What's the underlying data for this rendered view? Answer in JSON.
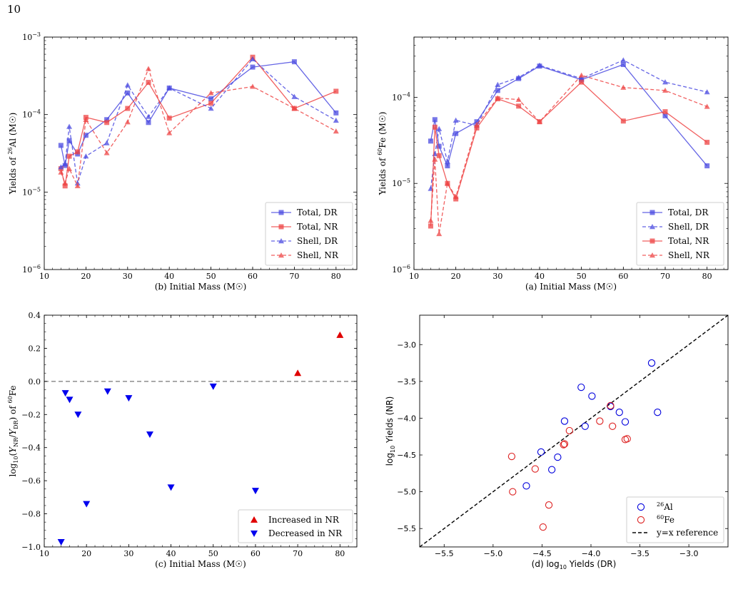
{
  "page": {
    "number": "10"
  },
  "chart_data": [
    {
      "id": "al26",
      "type": "line",
      "yscale": "log",
      "xlim": [
        10,
        85
      ],
      "ylim": [
        1e-06,
        0.001
      ],
      "xticks": [
        10,
        20,
        30,
        40,
        50,
        60,
        70,
        80
      ],
      "ytick_labels": [
        "10^-6",
        "10^-5",
        "10^-4",
        "10^-3"
      ],
      "xlabel": "(b) Initial Mass (M☉)",
      "ylabel": "Yields of 26Al (M☉)",
      "legend": "lower-right",
      "x": [
        14,
        15,
        16,
        18,
        20,
        25,
        30,
        35,
        40,
        50,
        60,
        70,
        80
      ],
      "series": [
        {
          "name": "Total, DR",
          "color": "#4a4ae0",
          "dash": false,
          "marker": "square",
          "values": [
            4e-05,
            2.2e-05,
            4.6e-05,
            3.1e-05,
            5.4e-05,
            8.6e-05,
            0.00019,
            7.9e-05,
            0.00022,
            0.00016,
            0.00041,
            0.00048,
            0.000105
          ]
        },
        {
          "name": "Total, NR",
          "color": "#ee4444",
          "dash": false,
          "marker": "square",
          "values": [
            2e-05,
            1.2e-05,
            2.9e-05,
            3.3e-05,
            9.2e-05,
            7.9e-05,
            0.00012,
            0.00026,
            9e-05,
            0.00014,
            0.00055,
            0.00012,
            0.0002
          ]
        },
        {
          "name": "Shell, DR",
          "color": "#4a4ae0",
          "dash": true,
          "marker": "triangle",
          "values": [
            2.1e-05,
            2.3e-05,
            7e-05,
            1.3e-05,
            2.9e-05,
            4.3e-05,
            0.00024,
            9.4e-05,
            0.00022,
            0.00012,
            0.00052,
            0.00017,
            8.4e-05
          ]
        },
        {
          "name": "Shell, NR",
          "color": "#ee4444",
          "dash": true,
          "marker": "triangle",
          "values": [
            1.8e-05,
            1.3e-05,
            2e-05,
            1.2e-05,
            8.6e-05,
            3.2e-05,
            8e-05,
            0.00039,
            5.8e-05,
            0.00019,
            0.00023,
            0.00012,
            6.1e-05
          ]
        }
      ]
    },
    {
      "id": "fe60",
      "type": "line",
      "yscale": "log",
      "xlim": [
        10,
        85
      ],
      "ylim": [
        1e-06,
        0.0005
      ],
      "xticks": [
        10,
        20,
        30,
        40,
        50,
        60,
        70,
        80
      ],
      "ytick_labels": [
        "10^-6",
        "10^-5",
        "10^-4"
      ],
      "xlabel": "(a) Initial Mass (M☉)",
      "ylabel": "Yields of 60Fe (M☉)",
      "legend": "lower-right",
      "x": [
        14,
        15,
        16,
        18,
        20,
        25,
        30,
        35,
        40,
        50,
        60,
        70,
        80
      ],
      "series": [
        {
          "name": "Total, DR",
          "color": "#4a4ae0",
          "dash": false,
          "marker": "square",
          "values": [
            3.1e-05,
            5.5e-05,
            2.7e-05,
            1.6e-05,
            3.8e-05,
            5.2e-05,
            0.00012,
            0.000165,
            0.00023,
            0.00016,
            0.00024,
            6.1e-05,
            1.6e-05
          ]
        },
        {
          "name": "Shell, DR",
          "color": "#4a4ae0",
          "dash": true,
          "marker": "triangle",
          "values": [
            8.7e-06,
            2.2e-05,
            4.3e-05,
            1.8e-05,
            5.4e-05,
            4.7e-05,
            0.00014,
            0.00017,
            0.000235,
            0.000165,
            0.00027,
            0.00015,
            0.000115
          ]
        },
        {
          "name": "Total, NR",
          "color": "#ee4444",
          "dash": false,
          "marker": "square",
          "values": [
            3.2e-06,
            4.5e-05,
            2.1e-05,
            1e-05,
            6.6e-06,
            4.4e-05,
            9.6e-05,
            7.9e-05,
            5.2e-05,
            0.00015,
            5.3e-05,
            6.8e-05,
            3e-05
          ]
        },
        {
          "name": "Shell, NR",
          "color": "#ee4444",
          "dash": true,
          "marker": "triangle",
          "values": [
            3.7e-06,
            1.9e-05,
            2.6e-06,
            1e-05,
            7e-06,
            4.8e-05,
            9.8e-05,
            9.4e-05,
            5.2e-05,
            0.00018,
            0.00013,
            0.00012,
            7.8e-05
          ]
        }
      ]
    },
    {
      "id": "ratio",
      "type": "scatter",
      "xlim": [
        10,
        84
      ],
      "ylim": [
        -1.0,
        0.4
      ],
      "xticks": [
        10,
        20,
        30,
        40,
        50,
        60,
        70,
        80
      ],
      "yticks": [
        -1.0,
        -0.8,
        -0.6,
        -0.4,
        -0.2,
        0.0,
        0.2,
        0.4
      ],
      "ytick_labels": [
        "−1.0",
        "−0.8",
        "−0.6",
        "−0.4",
        "−0.2",
        "0.0",
        "0.2",
        "0.4"
      ],
      "xlabel": "(c) Initial Mass (M☉)",
      "ylabel": "log10(YNR/YDR) of 60Fe",
      "reference_y": 0,
      "legend": "lower-right",
      "series": [
        {
          "name": "Increased in NR",
          "color": "#e00000",
          "marker": "triangle-up",
          "x": [
            70,
            80
          ],
          "y": [
            0.05,
            0.28
          ]
        },
        {
          "name": "Decreased in NR",
          "color": "#0000ee",
          "marker": "triangle-down",
          "x": [
            14,
            15,
            16,
            18,
            20,
            25,
            30,
            35,
            40,
            50,
            60
          ],
          "y": [
            -0.97,
            -0.07,
            -0.11,
            -0.2,
            -0.74,
            -0.06,
            -0.1,
            -0.32,
            -0.64,
            -0.03,
            -0.66
          ]
        }
      ]
    },
    {
      "id": "compare",
      "type": "scatter",
      "xlim": [
        -5.75,
        -2.6
      ],
      "ylim": [
        -5.75,
        -2.6
      ],
      "xticks": [
        -5.5,
        -5.0,
        -4.5,
        -4.0,
        -3.5,
        -3.0
      ],
      "yticks": [
        -5.5,
        -5.0,
        -4.5,
        -4.0,
        -3.5,
        -3.0
      ],
      "xtick_labels": [
        "−5.5",
        "−5.0",
        "−4.5",
        "−4.0",
        "−3.5",
        "−3.0"
      ],
      "ytick_labels": [
        "−5.5",
        "−5.0",
        "−4.5",
        "−4.0",
        "−3.5",
        "−3.0"
      ],
      "xlabel": "(d) log10 Yields (DR)",
      "ylabel": "log10 Yields (NR)",
      "legend": "lower-right",
      "series": [
        {
          "name": "26Al",
          "color": "#0000dd",
          "marker": "circle-open",
          "x": [
            -4.4,
            -4.66,
            -4.51,
            -4.34,
            -4.27,
            -4.06,
            -4.1,
            -3.99,
            -3.8,
            -3.38,
            -3.71,
            -3.65,
            -3.32
          ],
          "y": [
            -4.7,
            -4.92,
            -4.46,
            -4.53,
            -4.04,
            -4.11,
            -3.58,
            -3.7,
            -3.84,
            -3.25,
            -3.92,
            -4.05,
            -3.92
          ]
        },
        {
          "name": "60Fe",
          "color": "#dd2222",
          "marker": "circle-open",
          "x": [
            -4.81,
            -4.57,
            -4.43,
            -4.8,
            -4.49,
            -4.28,
            -4.27,
            -4.22,
            -3.91,
            -3.8,
            -3.78,
            -3.63,
            -3.65
          ],
          "y": [
            -4.52,
            -4.69,
            -5.18,
            -5.0,
            -5.48,
            -4.36,
            -4.35,
            -4.17,
            -4.04,
            -3.83,
            -4.11,
            -4.28,
            -4.29
          ]
        },
        {
          "name": "y=x reference",
          "color": "#000000",
          "marker": "line-dashed"
        }
      ]
    }
  ]
}
